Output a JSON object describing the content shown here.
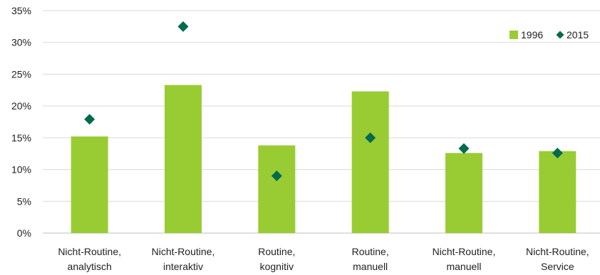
{
  "chart_data": {
    "type": "bar",
    "categories": [
      [
        "Nicht-Routine,",
        "analytisch"
      ],
      [
        "Nicht-Routine,",
        "interaktiv"
      ],
      [
        "Routine,",
        "kognitiv"
      ],
      [
        "Routine,",
        "manuell"
      ],
      [
        "Nicht-Routine,",
        "manuell"
      ],
      [
        "Nicht-Routine,",
        "Service"
      ]
    ],
    "series": [
      {
        "name": "1996",
        "mark": "bar",
        "values": [
          15.2,
          23.3,
          13.8,
          22.3,
          12.6,
          12.9
        ]
      },
      {
        "name": "2015",
        "mark": "diamond",
        "values": [
          17.9,
          32.5,
          9.0,
          15.0,
          13.3,
          12.6
        ]
      }
    ],
    "y_ticks": [
      "0%",
      "5%",
      "10%",
      "15%",
      "20%",
      "25%",
      "30%",
      "35%"
    ],
    "ylim": [
      0,
      35
    ],
    "y_step": 5,
    "grid": true,
    "legend_position": "top-right",
    "colors": {
      "bar": "#99cc33",
      "marker": "#006a4e",
      "grid": "#d9d9d9",
      "axis": "#bfbfbf"
    }
  }
}
